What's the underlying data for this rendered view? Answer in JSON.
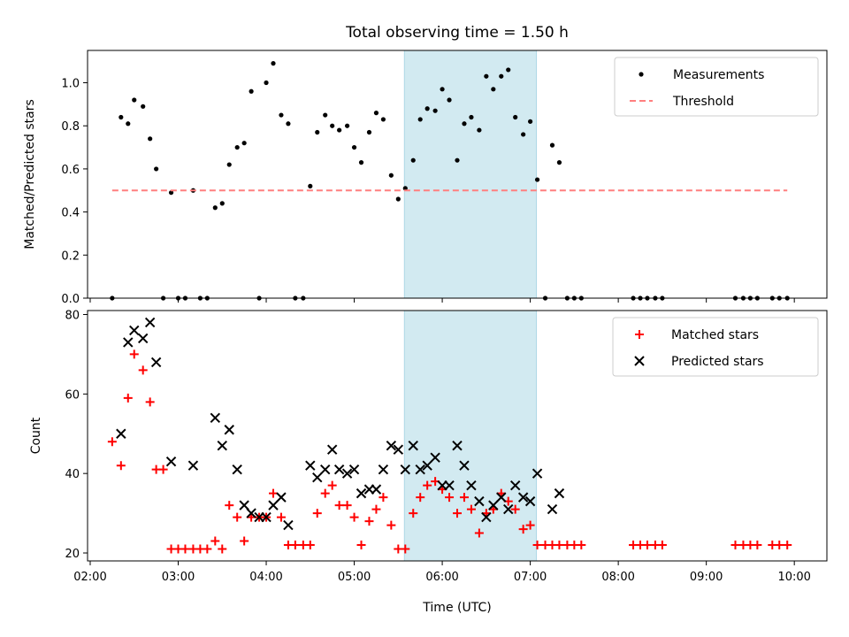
{
  "chart_data": {
    "title": "Total observing time = 1.50 h",
    "xlabel": "Time (UTC)",
    "x_range_hours": [
      1.97,
      10.37
    ],
    "x_ticks": [
      "02:00",
      "03:00",
      "04:00",
      "05:00",
      "06:00",
      "07:00",
      "08:00",
      "09:00",
      "10:00"
    ],
    "x_tick_hours": [
      2,
      3,
      4,
      5,
      6,
      7,
      8,
      9,
      10
    ],
    "highlight_span_hours": [
      5.57,
      7.07
    ],
    "highlight_color": "#add8e6",
    "panels": [
      {
        "type": "scatter",
        "ylabel": "Matched/Predicted stars",
        "ylim": [
          0,
          1.15
        ],
        "y_ticks": [
          "0.0",
          "0.2",
          "0.4",
          "0.6",
          "0.8",
          "1.0"
        ],
        "y_tick_values": [
          0,
          0.2,
          0.4,
          0.6,
          0.8,
          1.0
        ],
        "legend": {
          "placement": "top-right",
          "entries": [
            "Measurements",
            "Threshold"
          ]
        },
        "series": [
          {
            "name": "Measurements",
            "marker": "dot",
            "color": "#000000",
            "x": [
              2.25,
              2.35,
              2.43,
              2.5,
              2.6,
              2.68,
              2.75,
              2.83,
              2.92,
              3.0,
              3.08,
              3.17,
              3.25,
              3.33,
              3.42,
              3.5,
              3.58,
              3.67,
              3.75,
              3.83,
              3.92,
              4.0,
              4.08,
              4.17,
              4.25,
              4.33,
              4.42,
              4.5,
              4.58,
              4.67,
              4.75,
              4.83,
              4.92,
              5.0,
              5.08,
              5.17,
              5.25,
              5.33,
              5.42,
              5.5,
              5.58,
              5.67,
              5.75,
              5.83,
              5.92,
              6.0,
              6.08,
              6.17,
              6.25,
              6.33,
              6.42,
              6.5,
              6.58,
              6.67,
              6.75,
              6.83,
              6.92,
              7.0,
              7.08,
              7.17,
              7.25,
              7.33,
              7.42,
              7.5,
              7.58,
              8.17,
              8.25,
              8.33,
              8.42,
              8.5,
              9.33,
              9.42,
              9.5,
              9.58,
              9.75,
              9.83,
              9.92
            ],
            "y": [
              0,
              0.84,
              0.81,
              0.92,
              0.89,
              0.74,
              0.6,
              0,
              0.49,
              0,
              0,
              0.5,
              0,
              0,
              0.42,
              0.44,
              0.62,
              0.7,
              0.72,
              0.96,
              0,
              1.0,
              1.09,
              0.85,
              0.81,
              0,
              0,
              0.52,
              0.77,
              0.85,
              0.8,
              0.78,
              0.8,
              0.7,
              0.63,
              0.77,
              0.86,
              0.83,
              0.57,
              0.46,
              0.51,
              0.64,
              0.83,
              0.88,
              0.87,
              0.97,
              0.92,
              0.64,
              0.81,
              0.84,
              0.78,
              1.03,
              0.97,
              1.03,
              1.06,
              0.84,
              0.76,
              0.82,
              0.55,
              0,
              0.71,
              0.63,
              0,
              0,
              0,
              0,
              0,
              0,
              0,
              0,
              0,
              0,
              0,
              0,
              0,
              0,
              0
            ]
          },
          {
            "name": "Threshold",
            "marker": "dashed-line",
            "color": "#ff7f7f",
            "x": [
              2.25,
              9.92
            ],
            "y": [
              0.5,
              0.5
            ]
          }
        ]
      },
      {
        "type": "scatter",
        "ylabel": "Count",
        "ylim": [
          18,
          81
        ],
        "y_ticks": [
          "20",
          "40",
          "60",
          "80"
        ],
        "y_tick_values": [
          20,
          40,
          60,
          80
        ],
        "legend": {
          "placement": "top-right",
          "entries": [
            "Matched stars",
            "Predicted stars"
          ]
        },
        "series": [
          {
            "name": "Matched stars",
            "marker": "plus",
            "color": "#ff0000",
            "x": [
              2.25,
              2.35,
              2.43,
              2.5,
              2.6,
              2.68,
              2.75,
              2.83,
              2.92,
              3.0,
              3.08,
              3.17,
              3.25,
              3.33,
              3.42,
              3.5,
              3.58,
              3.67,
              3.75,
              3.83,
              3.92,
              4.0,
              4.08,
              4.17,
              4.25,
              4.33,
              4.42,
              4.5,
              4.58,
              4.67,
              4.75,
              4.83,
              4.92,
              5.0,
              5.08,
              5.17,
              5.25,
              5.33,
              5.42,
              5.5,
              5.58,
              5.67,
              5.75,
              5.83,
              5.92,
              6.0,
              6.08,
              6.17,
              6.25,
              6.33,
              6.42,
              6.5,
              6.58,
              6.67,
              6.75,
              6.83,
              6.92,
              7.0,
              7.08,
              7.17,
              7.25,
              7.33,
              7.42,
              7.5,
              7.58,
              8.17,
              8.25,
              8.33,
              8.42,
              8.5,
              9.33,
              9.42,
              9.5,
              9.58,
              9.75,
              9.83,
              9.92
            ],
            "y": [
              48,
              42,
              59,
              70,
              66,
              58,
              41,
              41,
              21,
              21,
              21,
              21,
              21,
              21,
              23,
              21,
              32,
              29,
              23,
              29,
              29,
              29,
              35,
              29,
              22,
              22,
              22,
              22,
              30,
              35,
              37,
              32,
              32,
              29,
              22,
              28,
              31,
              34,
              27,
              21,
              21,
              30,
              34,
              37,
              38,
              36,
              34,
              30,
              34,
              31,
              25,
              30,
              31,
              35,
              33,
              31,
              26,
              27,
              22,
              22,
              22,
              22,
              22,
              22,
              22,
              22,
              22,
              22,
              22,
              22,
              22,
              22,
              22,
              22,
              22,
              22,
              22
            ]
          },
          {
            "name": "Predicted stars",
            "marker": "x",
            "color": "#000000",
            "x": [
              2.35,
              2.43,
              2.5,
              2.6,
              2.68,
              2.75,
              2.92,
              3.17,
              3.42,
              3.5,
              3.58,
              3.67,
              3.75,
              3.83,
              3.92,
              4.0,
              4.08,
              4.17,
              4.25,
              4.5,
              4.58,
              4.67,
              4.75,
              4.83,
              4.92,
              5.0,
              5.08,
              5.17,
              5.25,
              5.33,
              5.42,
              5.5,
              5.58,
              5.67,
              5.75,
              5.83,
              5.92,
              6.0,
              6.08,
              6.17,
              6.25,
              6.33,
              6.42,
              6.5,
              6.58,
              6.67,
              6.75,
              6.83,
              6.92,
              7.0,
              7.08,
              7.25,
              7.33
            ],
            "y": [
              50,
              73,
              76,
              74,
              78,
              68,
              43,
              42,
              54,
              47,
              51,
              41,
              32,
              30,
              29,
              29,
              32,
              34,
              27,
              42,
              39,
              41,
              46,
              41,
              40,
              41,
              35,
              36,
              36,
              41,
              47,
              46,
              41,
              47,
              41,
              42,
              44,
              37,
              37,
              47,
              42,
              37,
              33,
              29,
              32,
              34,
              31,
              37,
              34,
              33,
              40,
              31,
              35
            ]
          }
        ]
      }
    ]
  }
}
